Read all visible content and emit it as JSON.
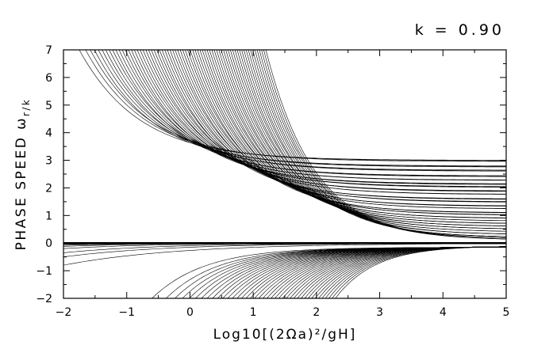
{
  "chart_data": {
    "type": "line",
    "annotation": "k = 0.90",
    "xlabel": "Log10[(2Ωa)²/gH]",
    "ylabel": "PHASE SPEED ω",
    "ylabel_sub": "r/k",
    "xlim": [
      -2,
      5
    ],
    "ylim": [
      -2,
      7
    ],
    "xticks": [
      -2,
      -1,
      0,
      1,
      2,
      3,
      4,
      5
    ],
    "xtick_labels": [
      "−2",
      "−1",
      "0",
      "1",
      "2",
      "3",
      "4",
      "5"
    ],
    "yticks": [
      -2,
      -1,
      0,
      1,
      2,
      3,
      4,
      5,
      6,
      7
    ],
    "ytick_labels": [
      "−2",
      "−1",
      "0",
      "1",
      "2",
      "3",
      "4",
      "5",
      "6",
      "7"
    ],
    "grid": false,
    "legend": "none",
    "line_color": "#000000",
    "families": {
      "eastward_gravity": {
        "count": 70,
        "asymptote_plateaus": [
          3.0,
          2.8,
          2.65,
          2.45,
          2.3,
          2.15,
          2.05,
          1.9,
          1.78,
          1.6,
          1.5,
          1.35,
          1.25,
          1.1,
          1.02,
          0.9,
          0.8,
          0.7,
          0.6,
          0.5,
          0.4,
          0.3,
          0.2,
          0.15,
          0.1
        ],
        "crosses_y7_at_x_from": -1.75,
        "crosses_y7_at_x_to": 1.2
      },
      "westward_gravity": {
        "count": 40,
        "plateaus_near": -0.1,
        "crosses_y_minus2_at_x_from": -0.6,
        "crosses_y_minus2_at_x_to": 2.3
      },
      "rossby": {
        "values_at_x_minus2": [
          -0.03,
          -0.05,
          -0.08,
          -0.12,
          -0.2,
          -0.35,
          -0.5,
          -0.8
        ],
        "approach": 0
      },
      "kelvin_band": {
        "value": 0
      }
    }
  }
}
